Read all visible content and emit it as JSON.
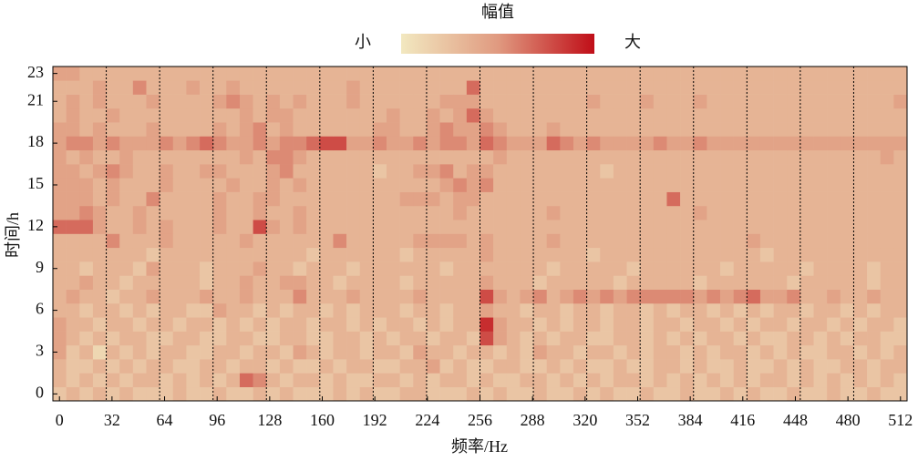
{
  "chart_data": {
    "type": "heatmap",
    "title": "幅值",
    "colorbar_low_label": "小",
    "colorbar_high_label": "大",
    "xlabel": "频率/Hz",
    "ylabel": "时间/h",
    "colors": [
      "#f2e8c0",
      "#e09a80",
      "#c00e18"
    ],
    "zlim": [
      0,
      9
    ],
    "xlim": [
      -4,
      516
    ],
    "ylim": [
      -0.5,
      23.5
    ],
    "xticks": [
      0,
      32,
      64,
      96,
      128,
      160,
      192,
      224,
      256,
      288,
      320,
      352,
      384,
      416,
      448,
      480,
      512
    ],
    "yticks": [
      0,
      3,
      6,
      9,
      12,
      15,
      18,
      21,
      23
    ],
    "z": [
      [
        2,
        3,
        2,
        3,
        2,
        3,
        2,
        2,
        2,
        3,
        2,
        2,
        3,
        2,
        2,
        3,
        2,
        3,
        2,
        2,
        2,
        3,
        2,
        3,
        2,
        2,
        3,
        3,
        2,
        2,
        2,
        3,
        2,
        3,
        2,
        2,
        3,
        2,
        2,
        3,
        2,
        3,
        2,
        2,
        3,
        2,
        2,
        3,
        2,
        2,
        3,
        2,
        3,
        2,
        2,
        3,
        2,
        2,
        3,
        2,
        2,
        3,
        2,
        2
      ],
      [
        3,
        2,
        3,
        2,
        3,
        2,
        3,
        3,
        2,
        3,
        2,
        3,
        2,
        3,
        6,
        5,
        3,
        2,
        3,
        3,
        2,
        3,
        2,
        2,
        3,
        3,
        2,
        3,
        2,
        3,
        3,
        2,
        3,
        2,
        2,
        3,
        3,
        2,
        3,
        2,
        3,
        2,
        3,
        3,
        2,
        3,
        2,
        3,
        2,
        3,
        2,
        3,
        2,
        3,
        3,
        2,
        3,
        2,
        3,
        2,
        3,
        2,
        3,
        2
      ],
      [
        3,
        2,
        2,
        3,
        2,
        3,
        2,
        3,
        3,
        2,
        2,
        3,
        3,
        2,
        3,
        3,
        2,
        3,
        2,
        2,
        3,
        2,
        3,
        3,
        2,
        2,
        3,
        3,
        4,
        2,
        3,
        2,
        2,
        3,
        3,
        2,
        2,
        3,
        2,
        3,
        2,
        2,
        3,
        2,
        2,
        3,
        3,
        2,
        3,
        2,
        2,
        3,
        2,
        2,
        3,
        2,
        3,
        2,
        2,
        3,
        3,
        2,
        3,
        3
      ],
      [
        4,
        2,
        3,
        1,
        3,
        2,
        3,
        2,
        3,
        3,
        2,
        2,
        3,
        3,
        2,
        3,
        3,
        2,
        4,
        3,
        2,
        3,
        3,
        2,
        3,
        3,
        2,
        4,
        3,
        3,
        2,
        3,
        3,
        2,
        3,
        2,
        4,
        3,
        3,
        2,
        3,
        3,
        2,
        3,
        2,
        3,
        3,
        2,
        3,
        2,
        3,
        3,
        2,
        3,
        2,
        3,
        2,
        2,
        3,
        3,
        2,
        3,
        2,
        3
      ],
      [
        4,
        3,
        2,
        3,
        2,
        3,
        3,
        2,
        2,
        3,
        3,
        2,
        2,
        3,
        3,
        2,
        2,
        3,
        3,
        2,
        2,
        3,
        3,
        2,
        3,
        2,
        3,
        3,
        2,
        3,
        3,
        2,
        7,
        4,
        3,
        2,
        3,
        2,
        3,
        3,
        2,
        2,
        3,
        3,
        2,
        3,
        2,
        3,
        2,
        3,
        3,
        2,
        3,
        2,
        2,
        3,
        3,
        2,
        3,
        2,
        3,
        3,
        2,
        2
      ],
      [
        4,
        3,
        3,
        2,
        3,
        3,
        2,
        3,
        3,
        2,
        3,
        3,
        2,
        3,
        2,
        3,
        2,
        3,
        3,
        2,
        3,
        3,
        2,
        3,
        2,
        3,
        3,
        2,
        3,
        2,
        3,
        3,
        8,
        4,
        3,
        3,
        2,
        3,
        2,
        3,
        3,
        2,
        3,
        3,
        2,
        3,
        3,
        2,
        3,
        3,
        2,
        3,
        2,
        3,
        3,
        2,
        3,
        3,
        2,
        3,
        2,
        3,
        3,
        2
      ],
      [
        3,
        3,
        2,
        3,
        3,
        2,
        3,
        2,
        3,
        3,
        2,
        2,
        4,
        3,
        3,
        2,
        3,
        2,
        3,
        3,
        2,
        3,
        2,
        3,
        3,
        3,
        2,
        3,
        3,
        2,
        3,
        3,
        4,
        3,
        3,
        2,
        3,
        3,
        2,
        3,
        3,
        2,
        3,
        3,
        2,
        3,
        2,
        3,
        3,
        2,
        3,
        2,
        3,
        2,
        3,
        3,
        2,
        3,
        3,
        2,
        3,
        2,
        3,
        3
      ],
      [
        3,
        4,
        3,
        3,
        2,
        3,
        3,
        4,
        3,
        3,
        3,
        4,
        3,
        3,
        4,
        3,
        3,
        3,
        5,
        3,
        3,
        3,
        4,
        3,
        3,
        3,
        3,
        4,
        3,
        3,
        3,
        3,
        7,
        4,
        3,
        4,
        5,
        3,
        4,
        5,
        4,
        5,
        4,
        5,
        5,
        5,
        5,
        5,
        4,
        5,
        4,
        5,
        6,
        4,
        4,
        5,
        3,
        3,
        4,
        3,
        3,
        4,
        3,
        3
      ],
      [
        3,
        3,
        4,
        3,
        3,
        2,
        3,
        3,
        3,
        3,
        3,
        2,
        3,
        3,
        4,
        3,
        3,
        4,
        4,
        3,
        3,
        2,
        3,
        3,
        3,
        3,
        2,
        3,
        3,
        3,
        3,
        3,
        4,
        3,
        3,
        3,
        2,
        3,
        3,
        3,
        3,
        3,
        2,
        3,
        3,
        3,
        3,
        3,
        2,
        3,
        3,
        3,
        3,
        3,
        3,
        2,
        3,
        3,
        3,
        3,
        3,
        2,
        3,
        3
      ],
      [
        3,
        3,
        2,
        3,
        3,
        3,
        2,
        4,
        3,
        3,
        3,
        2,
        3,
        3,
        3,
        4,
        3,
        3,
        2,
        3,
        3,
        3,
        2,
        3,
        3,
        3,
        3,
        3,
        3,
        2,
        3,
        3,
        3,
        3,
        3,
        3,
        3,
        2,
        3,
        3,
        3,
        3,
        3,
        2,
        3,
        3,
        3,
        3,
        3,
        3,
        2,
        3,
        3,
        3,
        3,
        3,
        2,
        3,
        3,
        3,
        3,
        2,
        3,
        3
      ],
      [
        3,
        3,
        3,
        3,
        3,
        3,
        3,
        2,
        3,
        3,
        3,
        3,
        3,
        3,
        3,
        3,
        3,
        3,
        3,
        2,
        3,
        3,
        3,
        3,
        3,
        3,
        2,
        3,
        3,
        3,
        3,
        3,
        4,
        3,
        3,
        3,
        3,
        3,
        3,
        3,
        2,
        3,
        3,
        3,
        3,
        3,
        3,
        3,
        3,
        3,
        3,
        3,
        3,
        2,
        3,
        3,
        3,
        3,
        3,
        3,
        3,
        3,
        3,
        3
      ],
      [
        3,
        3,
        3,
        3,
        5,
        3,
        3,
        3,
        4,
        3,
        3,
        3,
        3,
        3,
        4,
        3,
        3,
        3,
        3,
        3,
        3,
        5,
        3,
        3,
        3,
        3,
        3,
        4,
        4,
        4,
        4,
        3,
        4,
        3,
        3,
        3,
        3,
        4,
        3,
        3,
        3,
        3,
        3,
        3,
        3,
        3,
        3,
        3,
        3,
        3,
        3,
        3,
        4,
        3,
        3,
        3,
        3,
        3,
        3,
        3,
        3,
        3,
        3,
        3
      ],
      [
        6,
        6,
        6,
        4,
        3,
        3,
        4,
        3,
        4,
        3,
        3,
        3,
        4,
        3,
        3,
        7,
        4,
        3,
        4,
        3,
        3,
        3,
        3,
        3,
        3,
        3,
        3,
        3,
        3,
        3,
        3,
        3,
        3,
        3,
        3,
        3,
        3,
        3,
        3,
        3,
        3,
        3,
        3,
        3,
        3,
        3,
        3,
        3,
        3,
        3,
        3,
        3,
        3,
        3,
        3,
        3,
        3,
        3,
        3,
        3,
        3,
        3,
        3,
        3
      ],
      [
        4,
        4,
        5,
        4,
        3,
        3,
        4,
        3,
        3,
        3,
        3,
        3,
        4,
        3,
        3,
        4,
        3,
        3,
        4,
        3,
        3,
        3,
        3,
        3,
        3,
        3,
        3,
        3,
        3,
        3,
        4,
        3,
        3,
        3,
        3,
        3,
        3,
        4,
        3,
        3,
        3,
        3,
        3,
        3,
        3,
        3,
        3,
        3,
        4,
        3,
        3,
        3,
        3,
        3,
        3,
        3,
        3,
        3,
        3,
        3,
        3,
        3,
        3,
        3
      ],
      [
        4,
        4,
        4,
        3,
        4,
        3,
        3,
        5,
        3,
        3,
        3,
        3,
        4,
        3,
        3,
        4,
        4,
        3,
        3,
        3,
        3,
        3,
        3,
        3,
        3,
        3,
        4,
        4,
        4,
        3,
        4,
        4,
        3,
        3,
        3,
        3,
        3,
        3,
        3,
        3,
        3,
        3,
        3,
        3,
        3,
        3,
        6,
        3,
        3,
        3,
        3,
        3,
        3,
        3,
        3,
        3,
        3,
        3,
        3,
        3,
        3,
        3,
        3,
        3
      ],
      [
        4,
        4,
        4,
        3,
        4,
        3,
        3,
        3,
        4,
        3,
        3,
        3,
        3,
        4,
        3,
        3,
        4,
        3,
        4,
        3,
        3,
        3,
        3,
        3,
        3,
        3,
        3,
        3,
        3,
        4,
        5,
        4,
        5,
        3,
        3,
        3,
        3,
        3,
        3,
        3,
        3,
        3,
        3,
        3,
        3,
        3,
        3,
        3,
        3,
        3,
        3,
        3,
        3,
        3,
        3,
        3,
        3,
        3,
        3,
        3,
        3,
        3,
        3,
        3
      ],
      [
        4,
        4,
        3,
        4,
        5,
        4,
        3,
        3,
        4,
        3,
        3,
        4,
        4,
        3,
        3,
        3,
        4,
        5,
        3,
        3,
        3,
        3,
        3,
        3,
        2,
        3,
        3,
        4,
        4,
        5,
        3,
        4,
        4,
        3,
        3,
        3,
        3,
        3,
        3,
        3,
        3,
        2,
        3,
        3,
        3,
        3,
        3,
        3,
        3,
        3,
        3,
        3,
        3,
        3,
        3,
        3,
        3,
        3,
        3,
        3,
        3,
        3,
        3,
        3
      ],
      [
        4,
        3,
        4,
        3,
        3,
        4,
        3,
        3,
        3,
        3,
        3,
        3,
        3,
        3,
        4,
        3,
        5,
        5,
        4,
        3,
        3,
        3,
        3,
        3,
        3,
        3,
        3,
        3,
        3,
        3,
        3,
        3,
        3,
        4,
        3,
        3,
        3,
        3,
        3,
        3,
        3,
        3,
        3,
        3,
        3,
        3,
        3,
        3,
        3,
        3,
        3,
        3,
        3,
        3,
        3,
        3,
        3,
        3,
        3,
        3,
        3,
        3,
        4,
        3
      ],
      [
        4,
        5,
        5,
        4,
        5,
        4,
        4,
        4,
        5,
        4,
        5,
        6,
        5,
        4,
        4,
        5,
        4,
        5,
        5,
        6,
        7,
        7,
        4,
        4,
        5,
        4,
        4,
        5,
        4,
        5,
        5,
        4,
        6,
        5,
        4,
        4,
        4,
        6,
        5,
        4,
        5,
        4,
        4,
        4,
        4,
        5,
        4,
        4,
        5,
        4,
        4,
        4,
        4,
        4,
        4,
        4,
        4,
        4,
        4,
        4,
        4,
        4,
        4,
        4
      ],
      [
        4,
        4,
        3,
        4,
        3,
        3,
        3,
        4,
        3,
        3,
        3,
        3,
        4,
        3,
        4,
        5,
        3,
        4,
        3,
        3,
        3,
        3,
        3,
        3,
        4,
        4,
        3,
        3,
        4,
        5,
        4,
        4,
        5,
        4,
        3,
        3,
        3,
        4,
        3,
        3,
        3,
        3,
        3,
        3,
        3,
        3,
        3,
        3,
        3,
        3,
        3,
        3,
        3,
        3,
        3,
        3,
        3,
        3,
        3,
        3,
        3,
        3,
        3,
        3
      ],
      [
        3,
        4,
        3,
        3,
        4,
        3,
        3,
        3,
        3,
        3,
        3,
        3,
        3,
        3,
        4,
        3,
        4,
        4,
        3,
        3,
        3,
        3,
        3,
        3,
        3,
        4,
        3,
        3,
        4,
        3,
        4,
        6,
        4,
        3,
        3,
        3,
        3,
        3,
        3,
        3,
        3,
        3,
        3,
        3,
        3,
        3,
        3,
        3,
        3,
        3,
        3,
        3,
        3,
        3,
        3,
        3,
        3,
        3,
        3,
        3,
        3,
        3,
        3,
        3
      ],
      [
        3,
        4,
        3,
        4,
        3,
        3,
        3,
        4,
        3,
        3,
        3,
        3,
        4,
        5,
        4,
        3,
        4,
        3,
        4,
        3,
        3,
        3,
        4,
        3,
        3,
        3,
        3,
        3,
        3,
        4,
        4,
        4,
        3,
        3,
        3,
        3,
        3,
        3,
        3,
        3,
        4,
        3,
        3,
        3,
        4,
        3,
        3,
        3,
        4,
        3,
        3,
        3,
        3,
        3,
        3,
        3,
        3,
        3,
        3,
        3,
        3,
        3,
        3,
        4
      ],
      [
        3,
        3,
        3,
        4,
        3,
        3,
        5,
        3,
        3,
        3,
        4,
        3,
        3,
        4,
        3,
        3,
        3,
        3,
        3,
        3,
        3,
        3,
        4,
        3,
        3,
        3,
        3,
        3,
        3,
        3,
        3,
        6,
        3,
        3,
        3,
        3,
        3,
        3,
        3,
        3,
        3,
        3,
        3,
        3,
        3,
        3,
        3,
        3,
        3,
        3,
        3,
        3,
        3,
        3,
        3,
        3,
        3,
        3,
        3,
        3,
        3,
        3,
        3,
        3
      ],
      [
        4,
        4,
        3,
        3,
        3,
        3,
        3,
        3,
        3,
        3,
        3,
        3,
        3,
        3,
        3,
        3,
        3,
        3,
        3,
        3,
        3,
        3,
        3,
        3,
        3,
        3,
        3,
        3,
        3,
        3,
        3,
        3,
        3,
        3,
        3,
        3,
        3,
        3,
        3,
        3,
        3,
        3,
        3,
        3,
        3,
        3,
        3,
        3,
        3,
        3,
        3,
        3,
        3,
        3,
        3,
        3,
        3,
        3,
        3,
        3,
        3,
        3,
        3,
        3
      ]
    ]
  }
}
